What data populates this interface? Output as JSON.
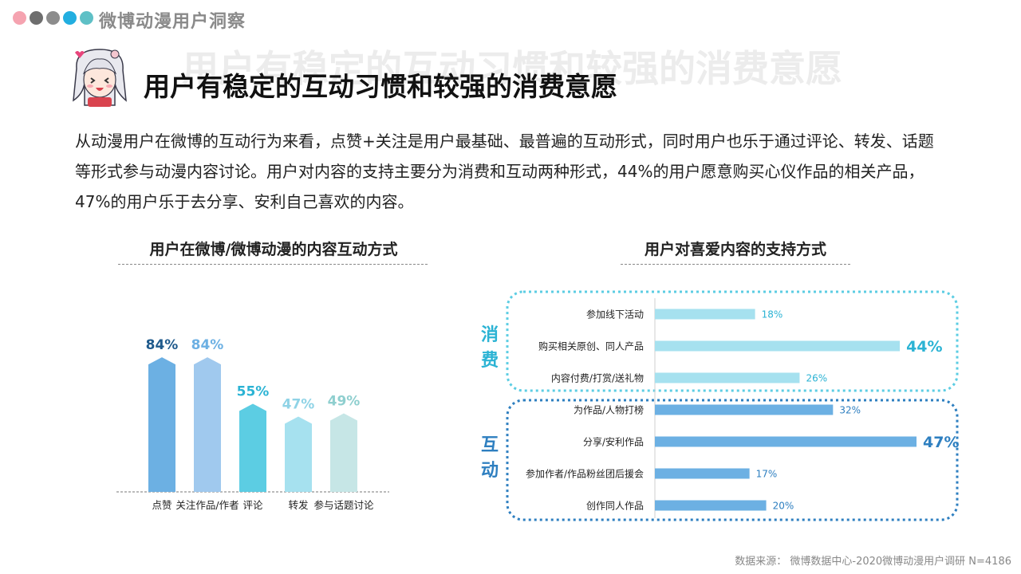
{
  "header": {
    "brand": "微博动漫用户洞察",
    "dot_colors": [
      "#f5a3b0",
      "#6e6e6e",
      "#8c8c8c",
      "#22aee0",
      "#5fc0c6"
    ]
  },
  "title": "用户有稳定的互动习惯和较强的消费意愿",
  "intro": "从动漫用户在微博的互动行为来看，点赞+关注是用户最基础、最普遍的互动形式，同时用户也乐于通过评论、转发、话题等形式参与动漫内容讨论。用户对内容的支持主要分为消费和互动两种形式，44%的用户愿意购买心仪作品的相关产品，47%的用户乐于去分享、安利自己喜欢的内容。",
  "left_chart_title": "用户在微博/微博动漫的内容互动方式",
  "right_chart_title": "用户对喜爱内容的支持方式",
  "group_labels": {
    "consume": "消费",
    "interact": "互动"
  },
  "source": "数据来源： 微博数据中心-2020微博动漫用户调研 N=4186",
  "chart_data": [
    {
      "type": "bar",
      "title": "用户在微博/微博动漫的内容互动方式",
      "categories": [
        "点赞",
        "关注作品/作者",
        "评论",
        "转发",
        "参与话题讨论"
      ],
      "values": [
        84,
        84,
        55,
        47,
        49
      ],
      "value_labels": [
        "84%",
        "84%",
        "55%",
        "47%",
        "49%"
      ],
      "unit": "%",
      "ylim": [
        0,
        100
      ],
      "colors": [
        "#6cb0e3",
        "#a0c9ee",
        "#5ccde3",
        "#a6e1ef",
        "#c6e6e6"
      ],
      "label_colors": [
        "#1f5a8c",
        "#6cb0e3",
        "#2bb3d4",
        "#8fd3e6",
        "#8fcfcf"
      ]
    },
    {
      "type": "bar",
      "orientation": "horizontal",
      "title": "用户对喜爱内容的支持方式",
      "categories": [
        "参加线下活动",
        "购买相关原创、同人产品",
        "内容付费/打赏/送礼物",
        "为作品/人物打榜",
        "分享/安利作品",
        "参加作者/作品粉丝团后援会",
        "创作同人作品"
      ],
      "values": [
        18,
        44,
        26,
        32,
        47,
        17,
        20
      ],
      "value_labels": [
        "18%",
        "44%",
        "26%",
        "32%",
        "47%",
        "17%",
        "20%"
      ],
      "groups": [
        "消费",
        "消费",
        "消费",
        "互动",
        "互动",
        "互动",
        "互动"
      ],
      "unit": "%",
      "xlim": [
        0,
        47
      ],
      "colors": {
        "消费": "#a6e1ef",
        "互动": "#6cb0e3"
      },
      "label_colors": {
        "消费": "#2bb3d4",
        "互动": "#2e7fc0"
      },
      "emphasized": [
        1,
        4
      ]
    }
  ]
}
